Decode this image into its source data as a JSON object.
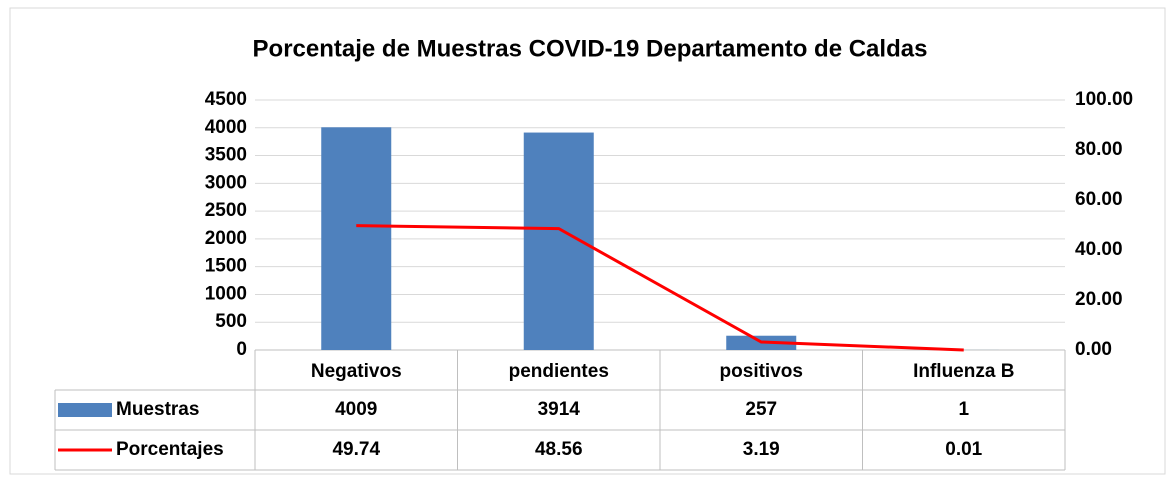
{
  "chart_data": {
    "type": "bar",
    "title": "Porcentaje de Muestras COVID-19 Departamento de Caldas",
    "categories": [
      "Negativos",
      "pendientes",
      "positivos",
      "Influenza B"
    ],
    "series": [
      {
        "name": "Muestras",
        "color": "#4f81bd",
        "type": "bar",
        "values": [
          4009,
          3914,
          257,
          1
        ]
      },
      {
        "name": "Porcentajes",
        "color": "#ff0000",
        "type": "line",
        "axis": "y2",
        "values": [
          49.74,
          48.56,
          3.19,
          0.01
        ]
      }
    ],
    "ylim": [
      0,
      4500
    ],
    "yticks": [
      0,
      500,
      1000,
      1500,
      2000,
      2500,
      3000,
      3500,
      4000,
      4500
    ],
    "y2lim": [
      0,
      100
    ],
    "y2ticks": [
      {
        "value": 0,
        "label": "0.00"
      },
      {
        "value": 20,
        "label": "20.00"
      },
      {
        "value": 40,
        "label": "40.00"
      },
      {
        "value": 60,
        "label": "60.00"
      },
      {
        "value": 80,
        "label": "80.00"
      },
      {
        "value": 100,
        "label": "100.00"
      }
    ],
    "grid": true
  }
}
